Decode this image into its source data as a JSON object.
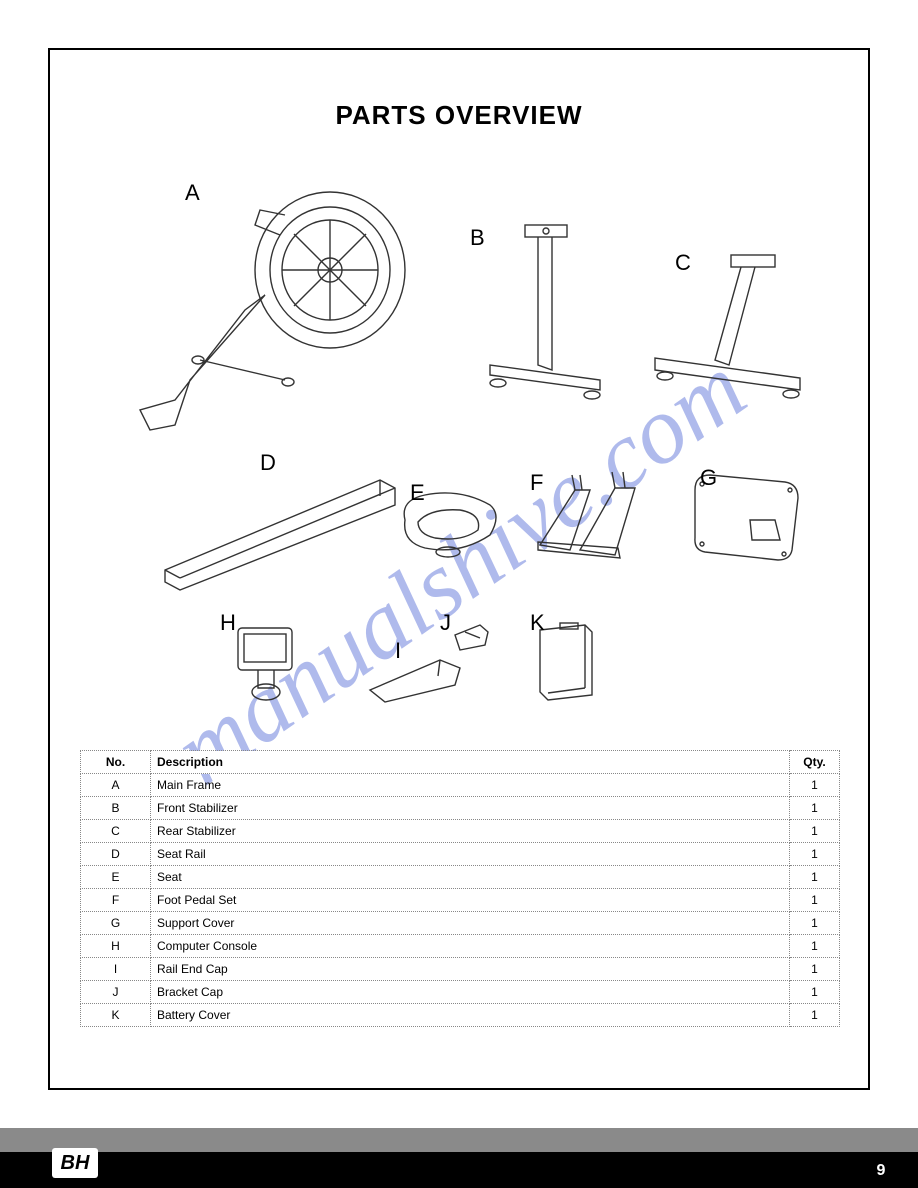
{
  "title": "PARTS OVERVIEW",
  "watermark": "manualshive.com",
  "table": {
    "headers": {
      "code": "No.",
      "desc": "Description",
      "qty": "Qty."
    },
    "rows": [
      {
        "code": "A",
        "desc": "Main Frame",
        "qty": "1"
      },
      {
        "code": "B",
        "desc": "Front Stabilizer",
        "qty": "1"
      },
      {
        "code": "C",
        "desc": "Rear Stabilizer",
        "qty": "1"
      },
      {
        "code": "D",
        "desc": "Seat Rail",
        "qty": "1"
      },
      {
        "code": "E",
        "desc": "Seat",
        "qty": "1"
      },
      {
        "code": "F",
        "desc": "Foot Pedal Set",
        "qty": "1"
      },
      {
        "code": "G",
        "desc": "Support Cover",
        "qty": "1"
      },
      {
        "code": "H",
        "desc": "Computer Console",
        "qty": "1"
      },
      {
        "code": "I",
        "desc": "Rail End Cap",
        "qty": "1"
      },
      {
        "code": "J",
        "desc": "Bracket Cap",
        "qty": "1"
      },
      {
        "code": "K",
        "desc": "Battery Cover",
        "qty": "1"
      }
    ]
  },
  "labels": {
    "A": "A",
    "B": "B",
    "C": "C",
    "D": "D",
    "E": "E",
    "F": "F",
    "G": "G",
    "H": "H",
    "I": "I",
    "J": "J",
    "K": "K"
  },
  "footer": {
    "logo": "BH",
    "page": "9"
  },
  "style": {
    "line_color": "#333333",
    "line_width": 1.4,
    "fill": "#ffffff",
    "label_fontsize": 22
  }
}
